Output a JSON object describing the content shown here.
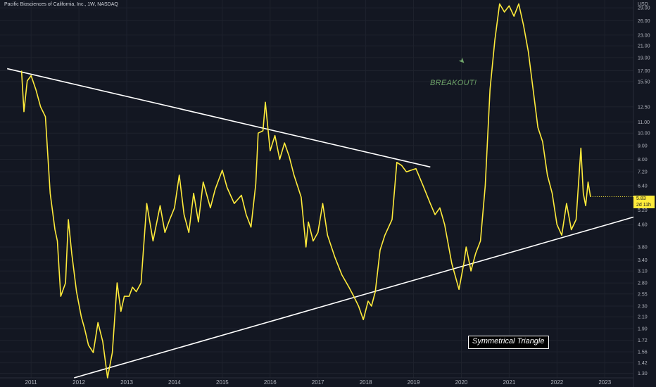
{
  "header": {
    "symbol_title": "Pacific Biosciences of California, Inc., 1W, NASDAQ",
    "currency": "USD"
  },
  "price_badge": {
    "price": "5.83",
    "countdown": "2d 11h"
  },
  "annotations": {
    "breakout": "BREAKOUT!",
    "pattern": "Symmetrical Triangle",
    "rocket_icon": "rocket-icon"
  },
  "colors": {
    "background": "#131722",
    "price_line": "#ffeb3b",
    "trendline": "#ffffff",
    "note_green": "#6fa56a"
  },
  "chart_data": {
    "type": "line",
    "title": "",
    "xlabel": "",
    "ylabel": "",
    "y_scale": "log",
    "ylim": [
      1.25,
      31
    ],
    "xlim": [
      2010.35,
      2023.6
    ],
    "grid": true,
    "x_ticks": [
      "2011",
      "2012",
      "2013",
      "2014",
      "2015",
      "2016",
      "2017",
      "2018",
      "2019",
      "2020",
      "2021",
      "2022",
      "2023"
    ],
    "y_ticks": [
      "29.00",
      "26.00",
      "23.00",
      "21.00",
      "19.00",
      "17.00",
      "15.50",
      "12.50",
      "11.00",
      "10.00",
      "9.00",
      "8.00",
      "7.20",
      "6.40",
      "5.20",
      "4.60",
      "3.80",
      "3.40",
      "3.10",
      "2.80",
      "2.55",
      "2.30",
      "2.10",
      "1.90",
      "1.72",
      "1.56",
      "1.42",
      "1.30"
    ],
    "series": [
      {
        "x": [
          2010.8,
          2010.85,
          2010.92,
          2011.0,
          2011.1,
          2011.2,
          2011.3,
          2011.4,
          2011.5,
          2011.55,
          2011.62,
          2011.72,
          2011.78,
          2011.85,
          2011.95,
          2012.05,
          2012.12,
          2012.2,
          2012.3,
          2012.4,
          2012.5,
          2012.6,
          2012.7,
          2012.8,
          2012.88,
          2012.95,
          2013.05,
          2013.12,
          2013.2,
          2013.3,
          2013.42,
          2013.55,
          2013.7,
          2013.8,
          2013.9,
          2014.0,
          2014.1,
          2014.2,
          2014.3,
          2014.4,
          2014.5,
          2014.6,
          2014.75,
          2014.85,
          2015.0,
          2015.1,
          2015.25,
          2015.4,
          2015.5,
          2015.6,
          2015.7,
          2015.75,
          2015.85,
          2015.9,
          2016.0,
          2016.1,
          2016.2,
          2016.3,
          2016.4,
          2016.5,
          2016.65,
          2016.75,
          2016.8,
          2016.9,
          2017.0,
          2017.1,
          2017.2,
          2017.35,
          2017.5,
          2017.65,
          2017.75,
          2017.85,
          2017.95,
          2018.05,
          2018.12,
          2018.2,
          2018.3,
          2018.4,
          2018.55,
          2018.65,
          2018.75,
          2018.85,
          2018.95,
          2019.05,
          2019.2,
          2019.35,
          2019.45,
          2019.55,
          2019.65,
          2019.8,
          2019.95,
          2020.05,
          2020.1,
          2020.2,
          2020.3,
          2020.4,
          2020.5,
          2020.6,
          2020.7,
          2020.8,
          2020.9,
          2021.0,
          2021.1,
          2021.2,
          2021.3,
          2021.4,
          2021.5,
          2021.6,
          2021.7,
          2021.8,
          2021.9,
          2022.0,
          2022.1,
          2022.2,
          2022.3,
          2022.4,
          2022.5,
          2022.55,
          2022.6,
          2022.65,
          2022.7
        ],
        "y": [
          17.0,
          12.0,
          15.6,
          16.3,
          14.5,
          12.5,
          11.5,
          6.0,
          4.4,
          4.0,
          2.5,
          2.8,
          4.8,
          3.6,
          2.6,
          2.1,
          1.9,
          1.65,
          1.55,
          2.0,
          1.7,
          1.25,
          1.55,
          2.8,
          2.2,
          2.5,
          2.5,
          2.7,
          2.6,
          2.8,
          5.5,
          4.0,
          5.4,
          4.3,
          4.8,
          5.3,
          7.0,
          5.0,
          4.3,
          6.0,
          4.7,
          6.6,
          5.3,
          6.2,
          7.3,
          6.3,
          5.5,
          5.9,
          5.0,
          4.5,
          6.5,
          10.0,
          10.2,
          13.0,
          8.6,
          9.8,
          8.0,
          9.2,
          8.2,
          7.0,
          5.8,
          3.8,
          4.7,
          4.0,
          4.3,
          5.5,
          4.2,
          3.5,
          3.0,
          2.7,
          2.5,
          2.3,
          2.05,
          2.4,
          2.3,
          2.6,
          3.7,
          4.2,
          4.8,
          7.8,
          7.6,
          7.2,
          7.3,
          7.4,
          6.4,
          5.5,
          5.0,
          5.3,
          4.6,
          3.3,
          2.65,
          3.3,
          3.8,
          3.1,
          3.6,
          4.0,
          6.4,
          14.5,
          22.0,
          30.0,
          28.0,
          29.5,
          27.0,
          30.0,
          25.0,
          20.0,
          14.5,
          10.5,
          9.3,
          7.0,
          6.0,
          4.6,
          4.2,
          5.5,
          4.4,
          4.8,
          8.8,
          6.0,
          5.4,
          6.6,
          5.83
        ]
      }
    ],
    "trendlines": [
      {
        "name": "",
        "points": [
          [
            2010.5,
            17.3
          ],
          [
            2019.35,
            7.5
          ]
        ]
      },
      {
        "name": "",
        "points": [
          [
            2011.9,
            1.25
          ],
          [
            2023.6,
            4.9
          ]
        ]
      }
    ]
  }
}
